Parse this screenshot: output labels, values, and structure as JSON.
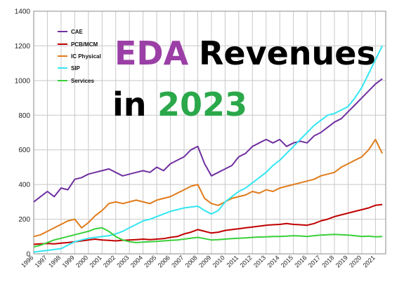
{
  "colors": {
    "cae": "#7030a0",
    "pcb_mcm": "#c00000",
    "ic_physical": "#e07b1a",
    "sip": "#33e6f0",
    "services": "#39d039",
    "title_eda": "#9b3fa6",
    "title_revenues": "#000000",
    "title_in": "#000000",
    "title_year": "#2aa84a"
  },
  "overlay_title": {
    "word1": "EDA",
    "word2": "Revenues",
    "word3": "in",
    "word4": "2023"
  },
  "chart_data": {
    "type": "line",
    "ylim": [
      0,
      1400
    ],
    "yticks": [
      "0",
      "200",
      "400",
      "600",
      "800",
      "1000",
      "1200",
      "1400"
    ],
    "xlim": [
      1996,
      2021.75
    ],
    "xticks": [
      "1996",
      "1997",
      "1998",
      "1999",
      "2000",
      "2001",
      "2002",
      "2003",
      "2004",
      "2005",
      "2006",
      "2007",
      "2008",
      "2009",
      "2010",
      "2011",
      "2012",
      "2013",
      "2014",
      "2015",
      "2016",
      "2017",
      "2018",
      "2019",
      "2020",
      "2021"
    ],
    "grid": true,
    "legend_position": "top-left",
    "series": [
      {
        "name": "CAE",
        "color_key": "cae",
        "points": [
          [
            1996,
            300
          ],
          [
            1996.5,
            330
          ],
          [
            1997,
            360
          ],
          [
            1997.5,
            330
          ],
          [
            1998,
            380
          ],
          [
            1998.5,
            370
          ],
          [
            1999,
            430
          ],
          [
            1999.5,
            440
          ],
          [
            2000,
            460
          ],
          [
            2000.5,
            470
          ],
          [
            2001,
            480
          ],
          [
            2001.5,
            490
          ],
          [
            2002,
            470
          ],
          [
            2002.5,
            450
          ],
          [
            2003,
            460
          ],
          [
            2003.5,
            470
          ],
          [
            2004,
            480
          ],
          [
            2004.5,
            470
          ],
          [
            2005,
            500
          ],
          [
            2005.5,
            480
          ],
          [
            2006,
            520
          ],
          [
            2006.5,
            540
          ],
          [
            2007,
            560
          ],
          [
            2007.5,
            600
          ],
          [
            2008,
            620
          ],
          [
            2008.5,
            520
          ],
          [
            2009,
            450
          ],
          [
            2009.5,
            470
          ],
          [
            2010,
            490
          ],
          [
            2010.5,
            510
          ],
          [
            2011,
            560
          ],
          [
            2011.5,
            580
          ],
          [
            2012,
            620
          ],
          [
            2012.5,
            640
          ],
          [
            2013,
            660
          ],
          [
            2013.5,
            640
          ],
          [
            2014,
            660
          ],
          [
            2014.5,
            620
          ],
          [
            2015,
            640
          ],
          [
            2015.5,
            650
          ],
          [
            2016,
            640
          ],
          [
            2016.5,
            680
          ],
          [
            2017,
            700
          ],
          [
            2017.5,
            730
          ],
          [
            2018,
            760
          ],
          [
            2018.5,
            780
          ],
          [
            2019,
            820
          ],
          [
            2019.5,
            860
          ],
          [
            2020,
            900
          ],
          [
            2020.5,
            940
          ],
          [
            2021,
            980
          ],
          [
            2021.5,
            1010
          ]
        ]
      },
      {
        "name": "PCB/MCM",
        "color_key": "pcb_mcm",
        "points": [
          [
            1996,
            55
          ],
          [
            1996.5,
            58
          ],
          [
            1997,
            60
          ],
          [
            1997.5,
            58
          ],
          [
            1998,
            62
          ],
          [
            1998.5,
            65
          ],
          [
            1999,
            70
          ],
          [
            1999.5,
            75
          ],
          [
            2000,
            80
          ],
          [
            2000.5,
            85
          ],
          [
            2001,
            80
          ],
          [
            2001.5,
            78
          ],
          [
            2002,
            75
          ],
          [
            2002.5,
            78
          ],
          [
            2003,
            80
          ],
          [
            2003.5,
            82
          ],
          [
            2004,
            85
          ],
          [
            2004.5,
            82
          ],
          [
            2005,
            85
          ],
          [
            2005.5,
            88
          ],
          [
            2006,
            95
          ],
          [
            2006.5,
            100
          ],
          [
            2007,
            115
          ],
          [
            2007.5,
            125
          ],
          [
            2008,
            140
          ],
          [
            2008.5,
            130
          ],
          [
            2009,
            120
          ],
          [
            2009.5,
            125
          ],
          [
            2010,
            135
          ],
          [
            2010.5,
            140
          ],
          [
            2011,
            145
          ],
          [
            2011.5,
            150
          ],
          [
            2012,
            155
          ],
          [
            2012.5,
            160
          ],
          [
            2013,
            165
          ],
          [
            2013.5,
            168
          ],
          [
            2014,
            170
          ],
          [
            2014.5,
            175
          ],
          [
            2015,
            170
          ],
          [
            2015.5,
            168
          ],
          [
            2016,
            165
          ],
          [
            2016.5,
            175
          ],
          [
            2017,
            190
          ],
          [
            2017.5,
            200
          ],
          [
            2018,
            215
          ],
          [
            2018.5,
            225
          ],
          [
            2019,
            235
          ],
          [
            2019.5,
            245
          ],
          [
            2020,
            255
          ],
          [
            2020.5,
            265
          ],
          [
            2021,
            280
          ],
          [
            2021.5,
            285
          ]
        ]
      },
      {
        "name": "IC Physical",
        "color_key": "ic_physical",
        "points": [
          [
            1996,
            100
          ],
          [
            1996.5,
            110
          ],
          [
            1997,
            130
          ],
          [
            1997.5,
            150
          ],
          [
            1998,
            170
          ],
          [
            1998.5,
            190
          ],
          [
            1999,
            200
          ],
          [
            1999.5,
            150
          ],
          [
            2000,
            180
          ],
          [
            2000.5,
            220
          ],
          [
            2001,
            250
          ],
          [
            2001.5,
            290
          ],
          [
            2002,
            300
          ],
          [
            2002.5,
            290
          ],
          [
            2003,
            300
          ],
          [
            2003.5,
            310
          ],
          [
            2004,
            300
          ],
          [
            2004.5,
            290
          ],
          [
            2005,
            310
          ],
          [
            2005.5,
            320
          ],
          [
            2006,
            330
          ],
          [
            2006.5,
            350
          ],
          [
            2007,
            370
          ],
          [
            2007.5,
            390
          ],
          [
            2008,
            400
          ],
          [
            2008.5,
            320
          ],
          [
            2009,
            290
          ],
          [
            2009.5,
            280
          ],
          [
            2010,
            300
          ],
          [
            2010.5,
            320
          ],
          [
            2011,
            330
          ],
          [
            2011.5,
            340
          ],
          [
            2012,
            360
          ],
          [
            2012.5,
            350
          ],
          [
            2013,
            370
          ],
          [
            2013.5,
            360
          ],
          [
            2014,
            380
          ],
          [
            2014.5,
            390
          ],
          [
            2015,
            400
          ],
          [
            2015.5,
            410
          ],
          [
            2016,
            420
          ],
          [
            2016.5,
            430
          ],
          [
            2017,
            450
          ],
          [
            2017.5,
            460
          ],
          [
            2018,
            470
          ],
          [
            2018.5,
            500
          ],
          [
            2019,
            520
          ],
          [
            2019.5,
            540
          ],
          [
            2020,
            560
          ],
          [
            2020.5,
            600
          ],
          [
            2021,
            660
          ],
          [
            2021.5,
            580
          ]
        ]
      },
      {
        "name": "SIP",
        "color_key": "sip",
        "points": [
          [
            1996,
            10
          ],
          [
            1996.5,
            15
          ],
          [
            1997,
            20
          ],
          [
            1997.5,
            25
          ],
          [
            1998,
            30
          ],
          [
            1998.5,
            50
          ],
          [
            1999,
            70
          ],
          [
            1999.5,
            80
          ],
          [
            2000,
            90
          ],
          [
            2000.5,
            95
          ],
          [
            2001,
            100
          ],
          [
            2001.5,
            105
          ],
          [
            2002,
            115
          ],
          [
            2002.5,
            130
          ],
          [
            2003,
            150
          ],
          [
            2003.5,
            170
          ],
          [
            2004,
            190
          ],
          [
            2004.5,
            200
          ],
          [
            2005,
            215
          ],
          [
            2005.5,
            230
          ],
          [
            2006,
            245
          ],
          [
            2006.5,
            255
          ],
          [
            2007,
            265
          ],
          [
            2007.5,
            270
          ],
          [
            2008,
            275
          ],
          [
            2008.5,
            250
          ],
          [
            2009,
            230
          ],
          [
            2009.5,
            250
          ],
          [
            2010,
            300
          ],
          [
            2010.5,
            330
          ],
          [
            2011,
            360
          ],
          [
            2011.5,
            380
          ],
          [
            2012,
            410
          ],
          [
            2012.5,
            440
          ],
          [
            2013,
            470
          ],
          [
            2013.5,
            510
          ],
          [
            2014,
            540
          ],
          [
            2014.5,
            580
          ],
          [
            2015,
            620
          ],
          [
            2015.5,
            660
          ],
          [
            2016,
            700
          ],
          [
            2016.5,
            740
          ],
          [
            2017,
            770
          ],
          [
            2017.5,
            800
          ],
          [
            2018,
            810
          ],
          [
            2018.5,
            830
          ],
          [
            2019,
            850
          ],
          [
            2019.5,
            900
          ],
          [
            2020,
            960
          ],
          [
            2020.5,
            1040
          ],
          [
            2021,
            1120
          ],
          [
            2021.5,
            1200
          ]
        ]
      },
      {
        "name": "Services",
        "color_key": "services",
        "points": [
          [
            1996,
            40
          ],
          [
            1996.5,
            50
          ],
          [
            1997,
            65
          ],
          [
            1997.5,
            80
          ],
          [
            1998,
            90
          ],
          [
            1998.5,
            100
          ],
          [
            1999,
            110
          ],
          [
            1999.5,
            120
          ],
          [
            2000,
            130
          ],
          [
            2000.5,
            145
          ],
          [
            2001,
            150
          ],
          [
            2001.5,
            130
          ],
          [
            2002,
            100
          ],
          [
            2002.5,
            80
          ],
          [
            2003,
            70
          ],
          [
            2003.5,
            65
          ],
          [
            2004,
            68
          ],
          [
            2004.5,
            70
          ],
          [
            2005,
            72
          ],
          [
            2005.5,
            75
          ],
          [
            2006,
            78
          ],
          [
            2006.5,
            80
          ],
          [
            2007,
            85
          ],
          [
            2007.5,
            90
          ],
          [
            2008,
            95
          ],
          [
            2008.5,
            88
          ],
          [
            2009,
            80
          ],
          [
            2009.5,
            82
          ],
          [
            2010,
            85
          ],
          [
            2010.5,
            88
          ],
          [
            2011,
            90
          ],
          [
            2011.5,
            92
          ],
          [
            2012,
            95
          ],
          [
            2012.5,
            97
          ],
          [
            2013,
            98
          ],
          [
            2013.5,
            100
          ],
          [
            2014,
            100
          ],
          [
            2014.5,
            102
          ],
          [
            2015,
            105
          ],
          [
            2015.5,
            103
          ],
          [
            2016,
            100
          ],
          [
            2016.5,
            105
          ],
          [
            2017,
            108
          ],
          [
            2017.5,
            110
          ],
          [
            2018,
            112
          ],
          [
            2018.5,
            110
          ],
          [
            2019,
            108
          ],
          [
            2019.5,
            105
          ],
          [
            2020,
            100
          ],
          [
            2020.5,
            102
          ],
          [
            2021,
            98
          ],
          [
            2021.5,
            100
          ]
        ]
      }
    ]
  }
}
